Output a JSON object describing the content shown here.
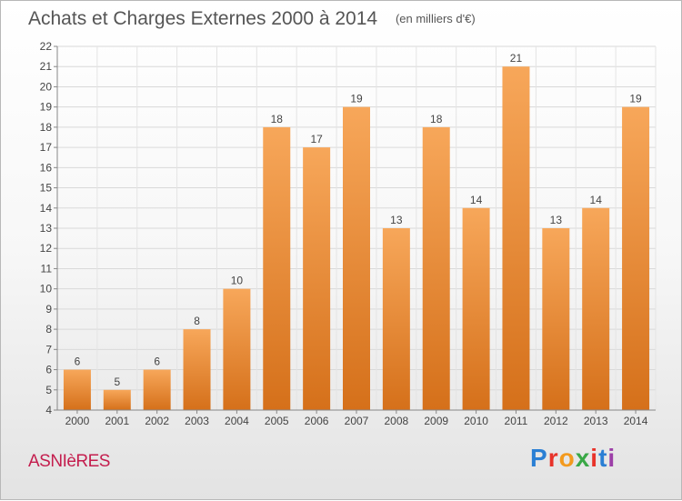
{
  "header": {
    "title": "Achats et Charges Externes 2000 à 2014",
    "unit": "(en milliers d'€)"
  },
  "footer": {
    "city": "ASNIèRES",
    "logo": {
      "letters": [
        "P",
        "r",
        "o",
        "x",
        "i",
        "t",
        "i"
      ],
      "colors": [
        "#2a7fd4",
        "#e8332a",
        "#f39a1e",
        "#3aa847",
        "#e8332a",
        "#2a7fd4",
        "#9c3fa8"
      ]
    }
  },
  "chart_data": {
    "type": "bar",
    "categories": [
      "2000",
      "2001",
      "2002",
      "2003",
      "2004",
      "2005",
      "2006",
      "2007",
      "2008",
      "2009",
      "2010",
      "2011",
      "2012",
      "2013",
      "2014"
    ],
    "values": [
      6,
      5,
      6,
      8,
      10,
      18,
      17,
      19,
      13,
      18,
      14,
      21,
      13,
      14,
      19
    ],
    "ylim": [
      4,
      22
    ],
    "yticks": [
      4,
      5,
      6,
      7,
      8,
      9,
      10,
      11,
      12,
      13,
      14,
      15,
      16,
      17,
      18,
      19,
      20,
      21,
      22
    ],
    "grid": true,
    "bar_color": "#f0902e",
    "title": "Achats et Charges Externes 2000 à 2014",
    "xlabel": "",
    "ylabel": ""
  }
}
